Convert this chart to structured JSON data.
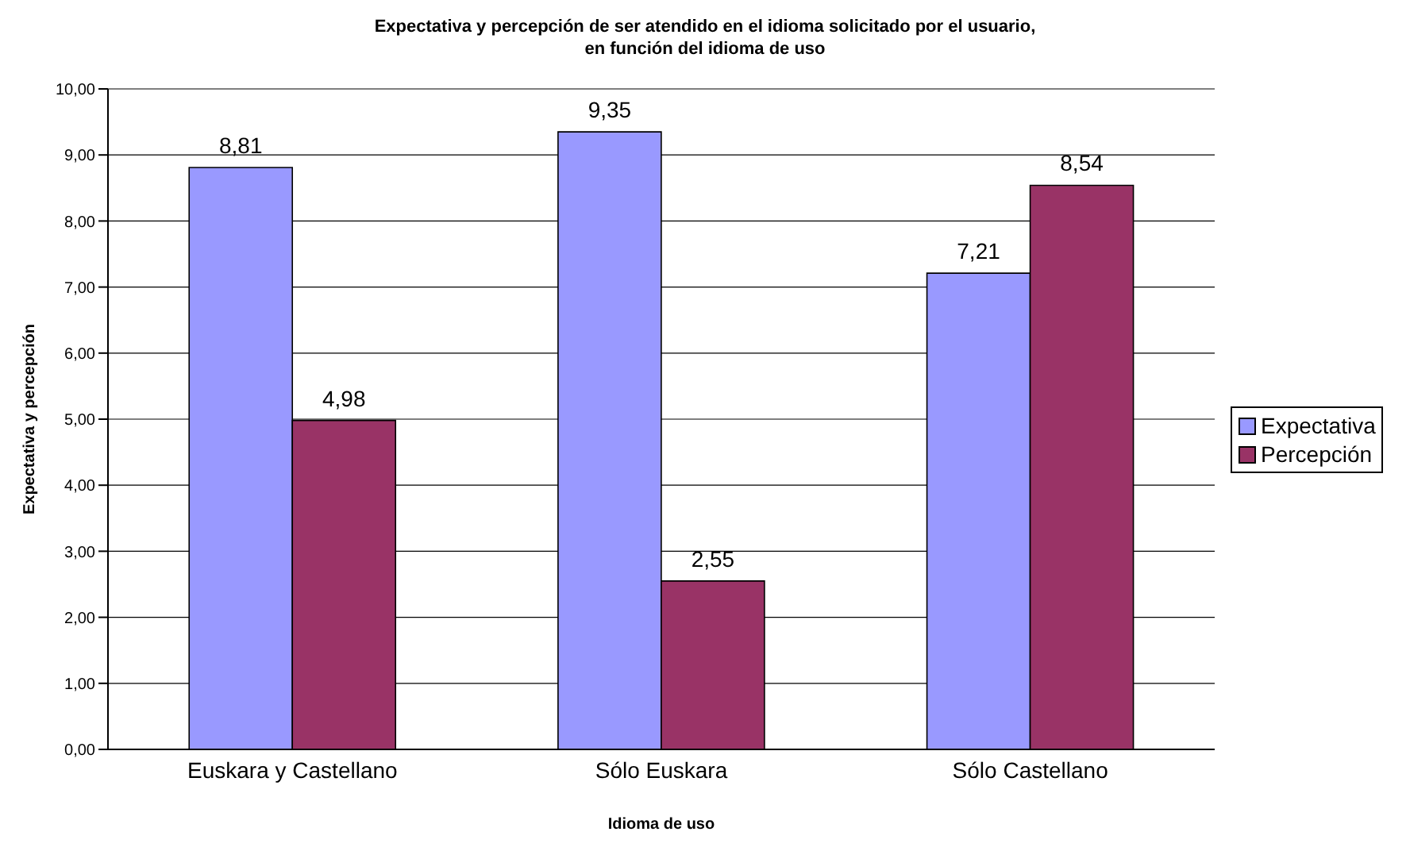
{
  "chart_data": {
    "type": "bar",
    "title": "Expectativa y percepción de ser atendido en el idioma solicitado por el usuario,\nen función del idioma de uso",
    "xlabel": "Idioma de uso",
    "ylabel": "Expectativa y percepción",
    "categories": [
      "Euskara y Castellano",
      "Sólo Euskara",
      "Sólo Castellano"
    ],
    "series": [
      {
        "name": "Expectativa",
        "color": "#9999ff",
        "values": [
          8.81,
          9.35,
          7.21
        ],
        "value_labels": [
          "8,81",
          "9,35",
          "7,21"
        ]
      },
      {
        "name": "Percepción",
        "color": "#993366",
        "values": [
          4.98,
          2.55,
          8.54
        ],
        "value_labels": [
          "4,98",
          "2,55",
          "8,54"
        ]
      }
    ],
    "ylim": [
      0,
      10
    ],
    "yticks": [
      {
        "value": 0,
        "label": "0,00"
      },
      {
        "value": 1,
        "label": "1,00"
      },
      {
        "value": 2,
        "label": "2,00"
      },
      {
        "value": 3,
        "label": "3,00"
      },
      {
        "value": 4,
        "label": "4,00"
      },
      {
        "value": 5,
        "label": "5,00"
      },
      {
        "value": 6,
        "label": "6,00"
      },
      {
        "value": 7,
        "label": "7,00"
      },
      {
        "value": 8,
        "label": "8,00"
      },
      {
        "value": 9,
        "label": "9,00"
      },
      {
        "value": 10,
        "label": "10,00"
      }
    ],
    "grid": "y",
    "legend": "right"
  }
}
